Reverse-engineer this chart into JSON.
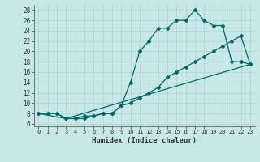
{
  "xlabel": "Humidex (Indice chaleur)",
  "bg_color": "#c8e8e8",
  "grid_color": "#b0d8d8",
  "line_color": "#006868",
  "xlim": [
    -0.5,
    23.5
  ],
  "ylim": [
    5.5,
    29
  ],
  "xticks": [
    0,
    1,
    2,
    3,
    4,
    5,
    6,
    7,
    8,
    9,
    10,
    11,
    12,
    13,
    14,
    15,
    16,
    17,
    18,
    19,
    20,
    21,
    22,
    23
  ],
  "yticks": [
    6,
    8,
    10,
    12,
    14,
    16,
    18,
    20,
    22,
    24,
    26,
    28
  ],
  "line1_x": [
    0,
    1,
    2,
    3,
    4,
    5,
    6,
    7,
    8,
    9,
    10,
    11,
    12,
    13,
    14,
    15,
    16,
    17,
    18,
    19,
    20,
    21,
    22,
    23
  ],
  "line1_y": [
    8,
    8,
    8,
    7,
    7,
    7,
    7.5,
    8,
    8,
    9.5,
    14,
    20,
    22,
    24.5,
    24.5,
    26,
    26,
    28,
    26,
    25,
    25,
    18,
    18,
    17.5
  ],
  "line2_x": [
    0,
    1,
    2,
    3,
    4,
    5,
    6,
    7,
    8,
    9,
    10,
    11,
    12,
    13,
    14,
    15,
    16,
    17,
    18,
    19,
    20,
    21,
    22,
    23
  ],
  "line2_y": [
    8,
    8,
    8,
    7,
    7,
    7.5,
    7.5,
    8,
    8,
    9.5,
    10,
    11,
    12,
    13,
    15,
    16,
    17,
    18,
    19,
    20,
    21,
    22,
    23,
    17.5
  ],
  "line3_x": [
    0,
    3,
    23
  ],
  "line3_y": [
    8,
    7,
    17.5
  ]
}
